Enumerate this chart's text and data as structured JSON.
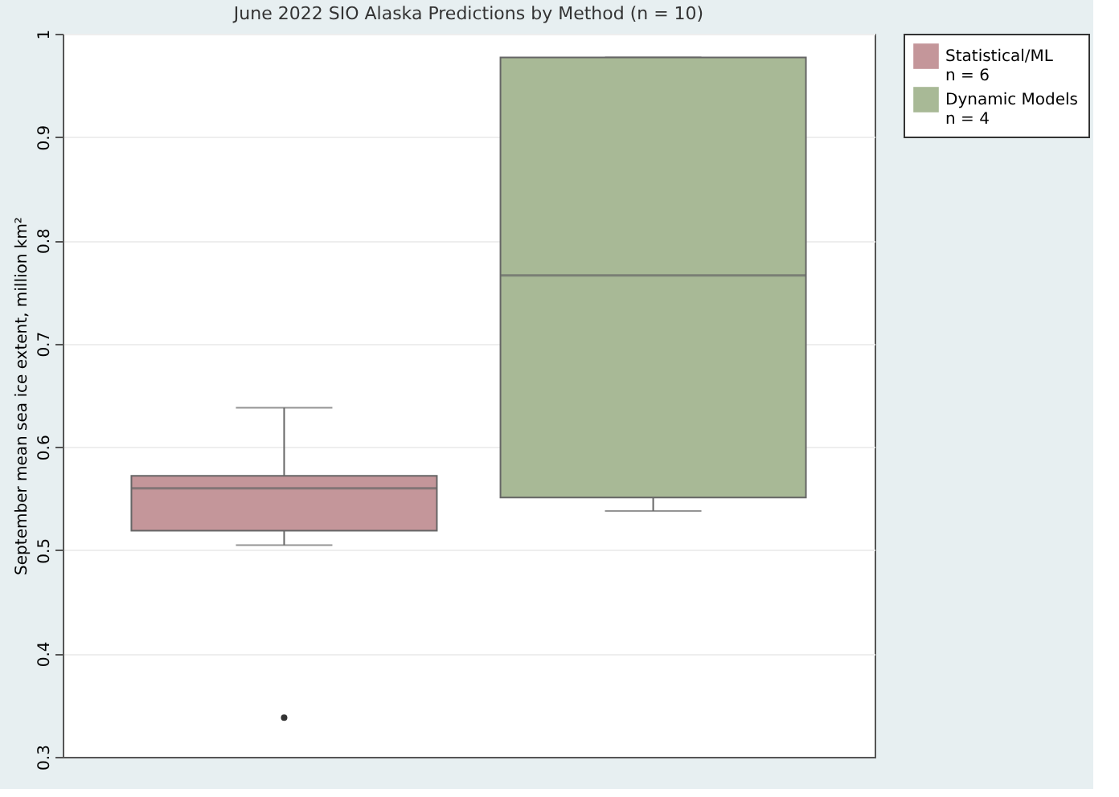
{
  "chart_data": {
    "type": "box",
    "title": "June 2022 SIO Alaska Predictions by Method (n = 10)",
    "ylabel": "September mean sea ice extent, million km²",
    "categories": [
      null,
      null
    ],
    "series": [
      {
        "name": "Statistical/ML\nn = 6",
        "color": "#c4969a",
        "boxes": [
          {
            "low": 0.505,
            "q1": 0.519,
            "median": 0.56,
            "q3": 0.572,
            "high": 0.638,
            "outliers": [
              0.338
            ]
          },
          null
        ]
      },
      {
        "name": "Dynamic Models\nn = 4",
        "color": "#a8b996",
        "boxes": [
          null,
          {
            "low": 0.538,
            "q1": 0.551,
            "median": 0.766,
            "q3": 0.977,
            "high": 0.977
          }
        ]
      }
    ],
    "ylim": [
      0.3,
      1.0
    ],
    "yticks": [
      0.3,
      0.4,
      0.5,
      0.6,
      0.7,
      0.8,
      0.9,
      1.0
    ],
    "grid": "y",
    "legend": "right"
  }
}
